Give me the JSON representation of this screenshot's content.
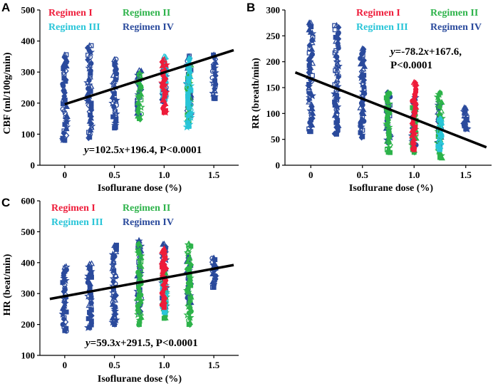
{
  "figure": {
    "colors": {
      "regimen_1": "#ee1c3a",
      "regimen_2": "#2db34a",
      "regimen_3": "#29c5d8",
      "regimen_4": "#2a4a9c",
      "fit_line": "#000000",
      "axis": "#000000"
    }
  },
  "chart_data": [
    {
      "panel": "A",
      "type": "scatter",
      "xlabel": "Isoflurane dose (%)",
      "ylabel": "CBF (ml/100g/min)",
      "xlim": [
        -0.25,
        1.75
      ],
      "ylim": [
        0,
        500
      ],
      "xticks": [
        0,
        0.5,
        1.0,
        1.5
      ],
      "xtick_labels": [
        "0",
        "0.5",
        "1.0",
        "1.5"
      ],
      "yticks": [
        0,
        100,
        200,
        300,
        400,
        500
      ],
      "ytick_labels": [
        "0",
        "100",
        "200",
        "300",
        "400",
        "500"
      ],
      "legend": [
        "Regimen I",
        "Regimen II",
        "Regimen III",
        "Regimen IV"
      ],
      "legend_placement": "top",
      "annotation": {
        "y": "y",
        "rest": "=102.5",
        "x": "x",
        "rest2": "+196.4, P<0.0001"
      },
      "fit": {
        "slope": 102.5,
        "intercept": 196.4,
        "x_range": [
          0,
          1.7
        ]
      },
      "series": [
        {
          "name": "Regimen IV",
          "color": "regimen_4",
          "points": [
            {
              "x": 0,
              "ymin": 80,
              "ymax": 355
            },
            {
              "x": 0.25,
              "ymin": 90,
              "ymax": 385
            },
            {
              "x": 0.5,
              "ymin": 120,
              "ymax": 340
            },
            {
              "x": 0.75,
              "ymin": 160,
              "ymax": 305
            },
            {
              "x": 1.0,
              "ymin": 205,
              "ymax": 320
            },
            {
              "x": 1.25,
              "ymin": 160,
              "ymax": 350
            },
            {
              "x": 1.5,
              "ymin": 215,
              "ymax": 355
            }
          ]
        },
        {
          "name": "Regimen II",
          "color": "regimen_2",
          "points": [
            {
              "x": 0.75,
              "ymin": 150,
              "ymax": 295
            },
            {
              "x": 1.25,
              "ymin": 140,
              "ymax": 330
            }
          ]
        },
        {
          "name": "Regimen III",
          "color": "regimen_3",
          "points": [
            {
              "x": 1.0,
              "ymin": 215,
              "ymax": 350
            },
            {
              "x": 1.25,
              "ymin": 125,
              "ymax": 345
            }
          ]
        },
        {
          "name": "Regimen I",
          "color": "regimen_1",
          "points": [
            {
              "x": 1.0,
              "ymin": 170,
              "ymax": 340
            }
          ]
        }
      ]
    },
    {
      "panel": "B",
      "type": "scatter",
      "xlabel": "Isoflurane dose (%)",
      "ylabel": "RR (breath/min)",
      "xlim": [
        -0.25,
        1.75
      ],
      "ylim": [
        0,
        300
      ],
      "xticks": [
        0,
        0.5,
        1.0,
        1.5
      ],
      "xtick_labels": [
        "0",
        "0.5",
        "1.0",
        "1.5"
      ],
      "yticks": [
        0,
        50,
        100,
        150,
        200,
        250,
        300
      ],
      "ytick_labels": [
        "0",
        "50",
        "100",
        "150",
        "200",
        "250",
        "300"
      ],
      "legend": [
        "Regimen I",
        "Regimen II",
        "Regimen III",
        "Regimen IV"
      ],
      "legend_placement": "top",
      "annotation": {
        "y": "y",
        "rest": "=-78.2",
        "x": "x",
        "rest2": "+167.6,",
        "line2": "P<0.0001"
      },
      "fit": {
        "slope": -78.2,
        "intercept": 167.6,
        "x_range": [
          -0.15,
          1.7
        ]
      },
      "series": [
        {
          "name": "Regimen IV",
          "color": "regimen_4",
          "points": [
            {
              "x": 0,
              "ymin": 65,
              "ymax": 275
            },
            {
              "x": 0.25,
              "ymin": 60,
              "ymax": 270
            },
            {
              "x": 0.5,
              "ymin": 55,
              "ymax": 225
            },
            {
              "x": 0.75,
              "ymin": 45,
              "ymax": 140
            },
            {
              "x": 1.0,
              "ymin": 40,
              "ymax": 130
            },
            {
              "x": 1.25,
              "ymin": 40,
              "ymax": 120
            },
            {
              "x": 1.5,
              "ymin": 70,
              "ymax": 110
            }
          ]
        },
        {
          "name": "Regimen II",
          "color": "regimen_2",
          "points": [
            {
              "x": 0.75,
              "ymin": 25,
              "ymax": 140
            },
            {
              "x": 1.0,
              "ymin": 25,
              "ymax": 110
            },
            {
              "x": 1.25,
              "ymin": 15,
              "ymax": 140
            }
          ]
        },
        {
          "name": "Regimen III",
          "color": "regimen_3",
          "points": [
            {
              "x": 1.25,
              "ymin": 30,
              "ymax": 90
            }
          ]
        },
        {
          "name": "Regimen I",
          "color": "regimen_1",
          "points": [
            {
              "x": 1.0,
              "ymin": 30,
              "ymax": 160
            }
          ]
        }
      ]
    },
    {
      "panel": "C",
      "type": "scatter",
      "xlabel": "Isoflurane dose (%)",
      "ylabel": "HR (beat/min)",
      "xlim": [
        -0.25,
        1.75
      ],
      "ylim": [
        100,
        600
      ],
      "xticks": [
        0,
        0.5,
        1.0,
        1.5
      ],
      "xtick_labels": [
        "0",
        "0.5",
        "1.0",
        "1.5"
      ],
      "yticks": [
        100,
        200,
        300,
        400,
        500,
        600
      ],
      "ytick_labels": [
        "100",
        "200",
        "300",
        "400",
        "500",
        "600"
      ],
      "legend": [
        "Regimen I",
        "Regimen II",
        "Regimen III",
        "Regimen IV"
      ],
      "legend_placement": "top",
      "annotation": {
        "y": "y",
        "rest": "=59.3",
        "x": "x",
        "rest2": "+291.5, P<0.0001"
      },
      "fit": {
        "slope": 59.3,
        "intercept": 291.5,
        "x_range": [
          -0.15,
          1.7
        ]
      },
      "series": [
        {
          "name": "Regimen IV",
          "color": "regimen_4",
          "points": [
            {
              "x": 0,
              "ymin": 180,
              "ymax": 385
            },
            {
              "x": 0.25,
              "ymin": 190,
              "ymax": 395
            },
            {
              "x": 0.5,
              "ymin": 200,
              "ymax": 455
            },
            {
              "x": 0.75,
              "ymin": 240,
              "ymax": 470
            },
            {
              "x": 1.0,
              "ymin": 250,
              "ymax": 460
            },
            {
              "x": 1.25,
              "ymin": 270,
              "ymax": 420
            },
            {
              "x": 1.5,
              "ymin": 320,
              "ymax": 415
            }
          ]
        },
        {
          "name": "Regimen II",
          "color": "regimen_2",
          "points": [
            {
              "x": 0.75,
              "ymin": 200,
              "ymax": 460
            },
            {
              "x": 1.0,
              "ymin": 220,
              "ymax": 380
            },
            {
              "x": 1.25,
              "ymin": 200,
              "ymax": 460
            }
          ]
        },
        {
          "name": "Regimen III",
          "color": "regimen_3",
          "points": [
            {
              "x": 1.0,
              "ymin": 240,
              "ymax": 330
            }
          ]
        },
        {
          "name": "Regimen I",
          "color": "regimen_1",
          "points": [
            {
              "x": 1.0,
              "ymin": 255,
              "ymax": 445
            }
          ]
        }
      ]
    }
  ]
}
